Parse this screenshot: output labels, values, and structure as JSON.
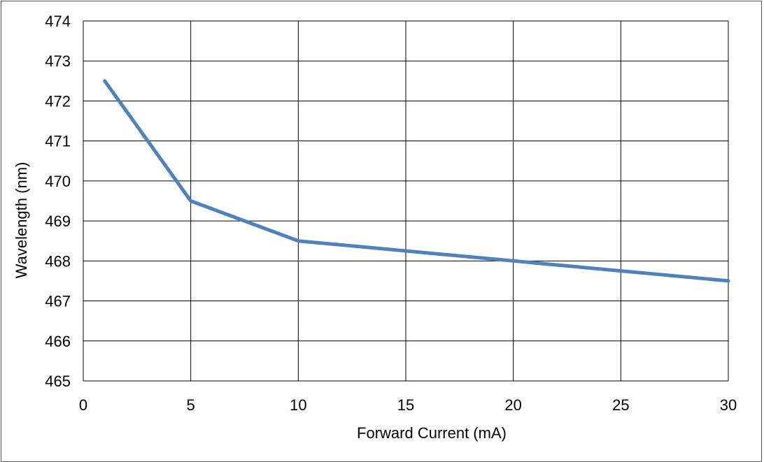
{
  "chart_data": {
    "type": "line",
    "title": "",
    "xlabel": "Forward Current (mA)",
    "ylabel": "Wavelength (nm)",
    "xlim": [
      0,
      30
    ],
    "ylim": [
      465,
      474
    ],
    "xticks": [
      0,
      5,
      10,
      15,
      20,
      25,
      30
    ],
    "yticks": [
      465,
      466,
      467,
      468,
      469,
      470,
      471,
      472,
      473,
      474
    ],
    "grid": true,
    "legend": "none",
    "series": [
      {
        "color": "#4f81bd",
        "x": [
          1,
          5,
          10,
          20,
          30
        ],
        "y": [
          472.5,
          469.5,
          468.5,
          468.0,
          467.5
        ]
      }
    ]
  }
}
